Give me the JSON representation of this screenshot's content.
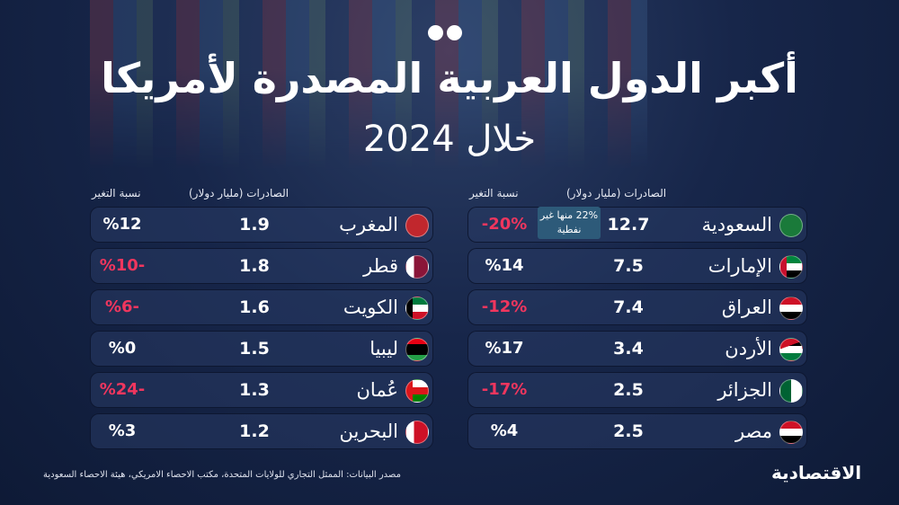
{
  "header": {
    "title": "أكبر الدول العربية المصدرة لأمريكا",
    "subtitle": "خلال 2024"
  },
  "tables": [
    {
      "columns": {
        "exports": "الصادرات (مليار دولار)",
        "change": "نسبة التغير"
      },
      "rows": [
        {
          "country": "السعودية",
          "exports": 12.7,
          "change": "-20%",
          "note": "22% منها غير نفطية"
        },
        {
          "country": "الإمارات",
          "exports": 7.5,
          "change": "%14"
        },
        {
          "country": "العراق",
          "exports": 7.4,
          "change": "-12%"
        },
        {
          "country": "الأردن",
          "exports": 3.4,
          "change": "%17"
        },
        {
          "country": "الجزائر",
          "exports": 2.5,
          "change": "-17%"
        },
        {
          "country": "مصر",
          "exports": 2.5,
          "change": "%4"
        }
      ]
    },
    {
      "columns": {
        "exports": "الصادرات (مليار دولار)",
        "change": "نسبة التغير"
      },
      "rows": [
        {
          "country": "المغرب",
          "exports": 1.9,
          "change": "%12"
        },
        {
          "country": "قطر",
          "exports": 1.8,
          "change": "%10-"
        },
        {
          "country": "الكويت",
          "exports": 1.6,
          "change": "%6-"
        },
        {
          "country": "ليبيا",
          "exports": 1.5,
          "change": "%0"
        },
        {
          "country": "عُمان",
          "exports": 1.3,
          "change": "%24-"
        },
        {
          "country": "البحرين",
          "exports": 1.2,
          "change": "%3"
        }
      ]
    }
  ],
  "source": "مصدر البيانات:  الممثل التجاري للولايات المتحدة، مكتب الاحصاء الامريكي، هيئة الاحصاء السعودية",
  "logo": "الاقتصادية"
}
